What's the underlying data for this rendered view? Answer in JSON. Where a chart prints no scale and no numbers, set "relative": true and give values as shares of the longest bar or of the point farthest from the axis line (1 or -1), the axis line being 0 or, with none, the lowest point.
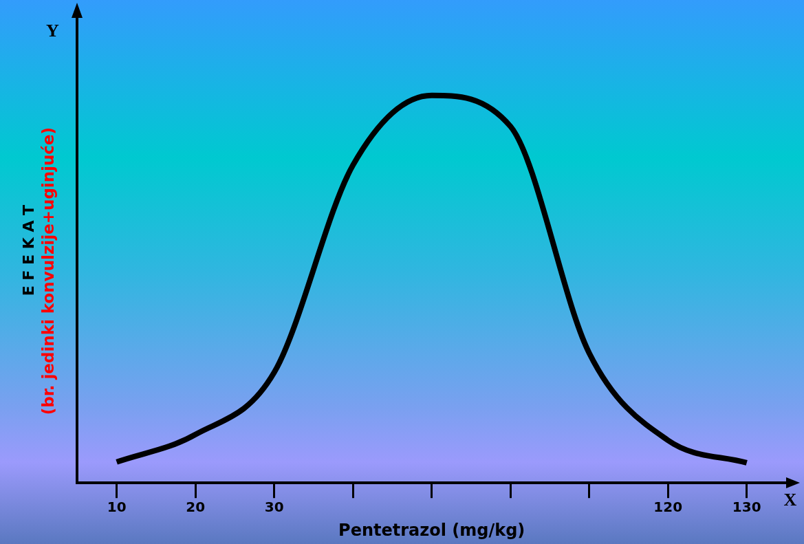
{
  "chart_data": {
    "type": "line",
    "relative": true,
    "xlabel": "Pentetrazol (mg/kg)",
    "ylabel": "E F E K A T",
    "annotations": [
      "(br. jedinki konvulzije+uginjuće)",
      "Y",
      "X"
    ],
    "categories": [
      "10",
      "20",
      "30",
      null,
      null,
      null,
      null,
      "120",
      "130"
    ],
    "series": [
      {
        "color": "#000000",
        "values": [
          0.054,
          0.125,
          0.285,
          0.82,
          1,
          0.92,
          0.335,
          0.11,
          0.052
        ]
      }
    ],
    "grid": false,
    "legend": false,
    "marker": "none",
    "line_style": "solid"
  }
}
